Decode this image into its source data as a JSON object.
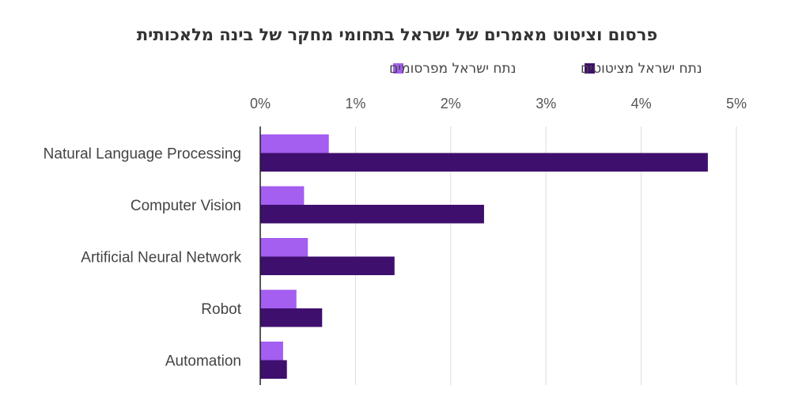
{
  "chart_data": {
    "type": "bar",
    "orientation": "horizontal",
    "title": "פרסום וציטוט מאמרים של ישראל בתחומי מחקר של בינה מלאכותית",
    "categories": [
      "Natural Language Processing",
      "Computer Vision",
      "Artificial Neural Network",
      "Robot",
      "Automation"
    ],
    "series": [
      {
        "name": "נתח ישראל מפרסומים",
        "color": "#a45ef0",
        "values": [
          0.72,
          0.46,
          0.5,
          0.38,
          0.24
        ]
      },
      {
        "name": "נתח ישראל מציטוטים",
        "color": "#3f0f6e",
        "values": [
          4.7,
          2.35,
          1.41,
          0.65,
          0.28
        ]
      }
    ],
    "xticks": [
      "0%",
      "1%",
      "2%",
      "3%",
      "4%",
      "5%"
    ],
    "xlim": [
      0,
      5
    ],
    "grid": true,
    "legend": "top"
  }
}
